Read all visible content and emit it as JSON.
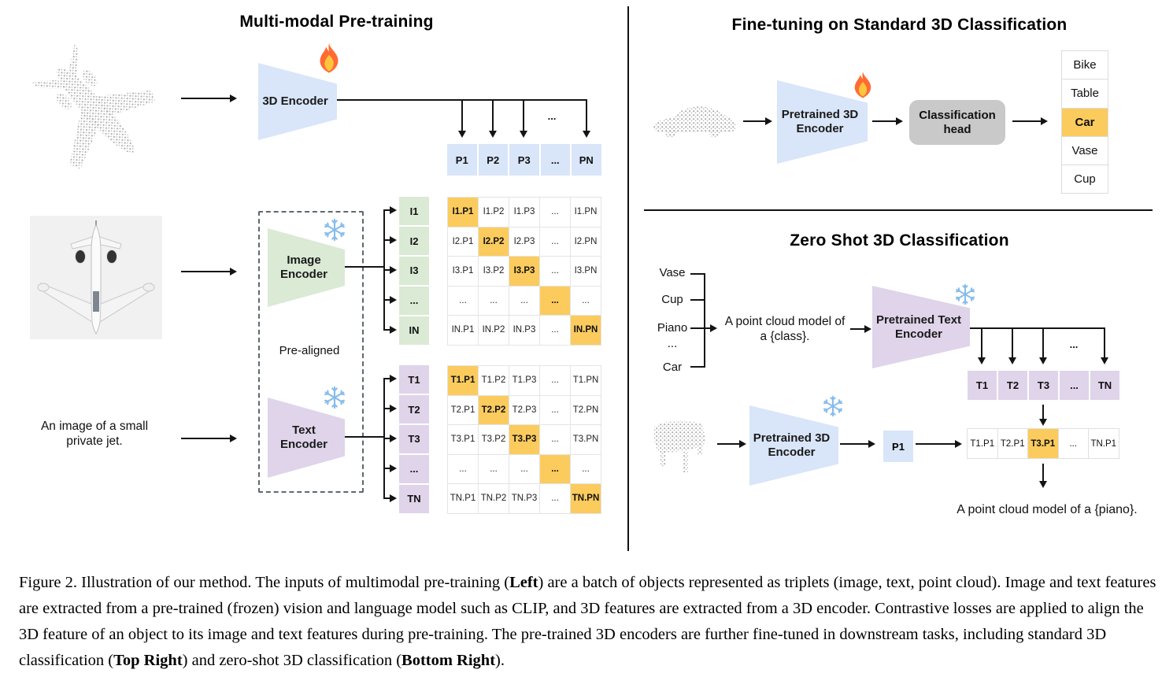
{
  "colors": {
    "blue": "#D9E5F8",
    "green": "#DAEAD5",
    "purple": "#DFD4EA",
    "hl": "#FBCB5E",
    "head_gray": "#C9C9C9"
  },
  "icons": {
    "trainable": "flame-icon",
    "frozen": "snowflake-icon"
  },
  "left": {
    "title": "Multi-modal Pre-training",
    "encoder_3d_label": "3D Encoder",
    "image_encoder_label": "Image\nEncoder",
    "text_encoder_label": "Text\nEncoder",
    "pre_aligned_label": "Pre-aligned",
    "input_caption": "An image of a small\nprivate jet.",
    "dots": "...",
    "p_row": [
      "P1",
      "P2",
      "P3",
      "...",
      "PN"
    ],
    "i_col": [
      "I1",
      "I2",
      "I3",
      "...",
      "IN"
    ],
    "t_col": [
      "T1",
      "T2",
      "T3",
      "...",
      "TN"
    ],
    "i_matrix": [
      [
        "I1.P1",
        "I1.P2",
        "I1.P3",
        "...",
        "I1.PN"
      ],
      [
        "I2.P1",
        "I2.P2",
        "I2.P3",
        "...",
        "I2.PN"
      ],
      [
        "I3.P1",
        "I3.P2",
        "I3.P3",
        "...",
        "I3.PN"
      ],
      [
        "...",
        "...",
        "...",
        "...",
        "..."
      ],
      [
        "IN.P1",
        "IN.P2",
        "IN.P3",
        "...",
        "IN.PN"
      ]
    ],
    "t_matrix": [
      [
        "T1.P1",
        "T1.P2",
        "T1.P3",
        "...",
        "T1.PN"
      ],
      [
        "T2.P1",
        "T2.P2",
        "T2.P3",
        "...",
        "T2.PN"
      ],
      [
        "T3.P1",
        "T3.P2",
        "T3.P3",
        "...",
        "T3.PN"
      ],
      [
        "...",
        "...",
        "...",
        "...",
        "..."
      ],
      [
        "TN.P1",
        "TN.P2",
        "TN.P3",
        "...",
        "TN.PN"
      ]
    ]
  },
  "top_right": {
    "title": "Fine-tuning on Standard 3D Classification",
    "encoder_label": "Pretrained 3D\nEncoder",
    "head_label": "Classification\nhead",
    "classes": [
      "Bike",
      "Table",
      "Car",
      "Vase",
      "Cup"
    ],
    "highlight_index": 2
  },
  "bottom_right": {
    "title": "Zero Shot 3D Classification",
    "class_prompts": [
      "Vase",
      "Cup",
      "Piano",
      "...",
      "Car"
    ],
    "prompt": "A point cloud model of\na {class}.",
    "text_encoder_label": "Pretrained Text\nEncoder",
    "encoder_label": "Pretrained 3D\nEncoder",
    "dots": "...",
    "t_row": [
      "T1",
      "T2",
      "T3",
      "...",
      "TN"
    ],
    "p_cell": "P1",
    "result_row": [
      "T1.P1",
      "T2.P1",
      "T3.P1",
      "...",
      "TN.P1"
    ],
    "result_highlight_index": 2,
    "output_text": "A point cloud model of a {piano}."
  },
  "caption": {
    "segments": [
      {
        "t": "Figure 2. Illustration of our method.  The inputs of multimodal pre-training (",
        "b": 0
      },
      {
        "t": "Left",
        "b": 1
      },
      {
        "t": ") are a batch of objects represented as triplets (image, text, point cloud).  Image and text features are extracted from a pre-trained (frozen) vision and language model such as CLIP, and 3D features are extracted from a 3D encoder.  Contrastive losses are applied to align the 3D feature of an object to its image and text features during pre-training.  The pre-trained 3D encoders are further fine-tuned in downstream tasks, including standard 3D classification (",
        "b": 0
      },
      {
        "t": "Top Right",
        "b": 1
      },
      {
        "t": ") and zero-shot 3D classification (",
        "b": 0
      },
      {
        "t": "Bottom Right",
        "b": 1
      },
      {
        "t": ").",
        "b": 0
      }
    ]
  }
}
